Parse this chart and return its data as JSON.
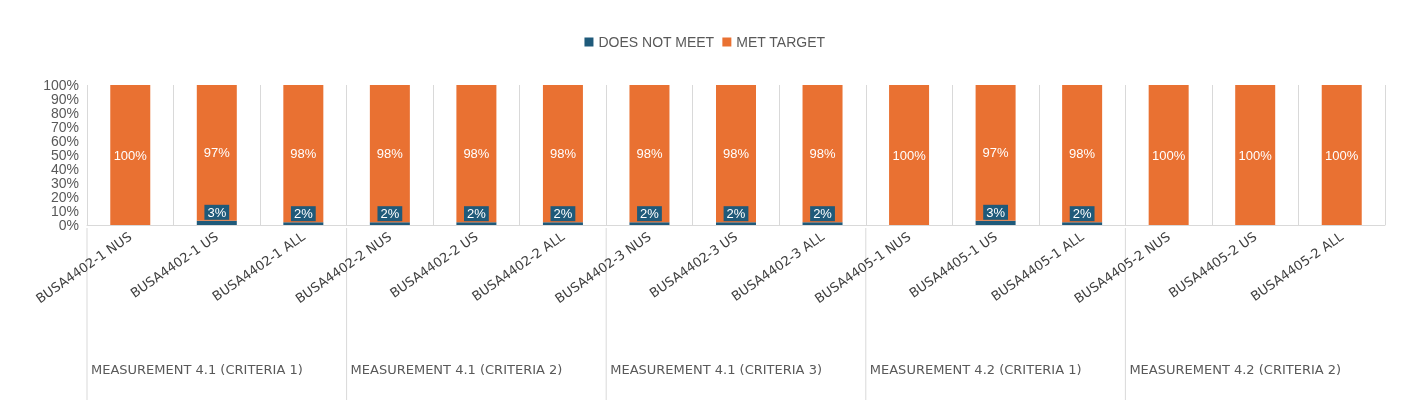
{
  "chart_data": {
    "type": "bar",
    "stacked": true,
    "categories": [
      "BUSA4402-1 NUS",
      "BUSA4402-1 US",
      "BUSA4402-1 ALL",
      "BUSA4402-2 NUS",
      "BUSA4402-2 US",
      "BUSA4402-2 ALL",
      "BUSA4402-3 NUS",
      "BUSA4402-3 US",
      "BUSA4402-3 ALL",
      "BUSA4405-1 NUS",
      "BUSA4405-1 US",
      "BUSA4405-1 ALL",
      "BUSA4405-2 NUS",
      "BUSA4405-2 US",
      "BUSA4405-2 ALL"
    ],
    "series": [
      {
        "name": "DOES NOT MEET",
        "color": "#1f5a7a",
        "values": [
          0,
          3,
          2,
          2,
          2,
          2,
          2,
          2,
          2,
          0,
          3,
          2,
          0,
          0,
          0
        ],
        "value_labels": [
          null,
          "3%",
          "2%",
          "2%",
          "2%",
          "2%",
          "2%",
          "2%",
          "2%",
          null,
          "3%",
          "2%",
          null,
          null,
          null
        ]
      },
      {
        "name": "MET TARGET",
        "color": "#e97132",
        "values": [
          100,
          97,
          98,
          98,
          98,
          98,
          98,
          98,
          98,
          100,
          97,
          98,
          100,
          100,
          100
        ],
        "value_labels": [
          "100%",
          "97%",
          "98%",
          "98%",
          "98%",
          "98%",
          "98%",
          "98%",
          "98%",
          "100%",
          "97%",
          "98%",
          "100%",
          "100%",
          "100%"
        ]
      }
    ],
    "ylim": [
      0,
      100
    ],
    "yticks": [
      {
        "value": 0,
        "label": "0%"
      },
      {
        "value": 10,
        "label": "10%"
      },
      {
        "value": 20,
        "label": "20%"
      },
      {
        "value": 30,
        "label": "30%"
      },
      {
        "value": 40,
        "label": "40%"
      },
      {
        "value": 50,
        "label": "50%"
      },
      {
        "value": 60,
        "label": "60%"
      },
      {
        "value": 70,
        "label": "70%"
      },
      {
        "value": 80,
        "label": "80%"
      },
      {
        "value": 90,
        "label": "90%"
      },
      {
        "value": 100,
        "label": "100%"
      }
    ],
    "annotations": [
      "MEASUREMENT 4.1 (CRITERIA 1)",
      "MEASUREMENT 4.1 (CRITERIA 2)",
      "MEASUREMENT 4.1 (CRITERIA 3)",
      "MEASUREMENT 4.2 (CRITERIA 1)",
      "MEASUREMENT 4.2 (CRITERIA 2)"
    ],
    "grid": "x",
    "legend": "top"
  }
}
